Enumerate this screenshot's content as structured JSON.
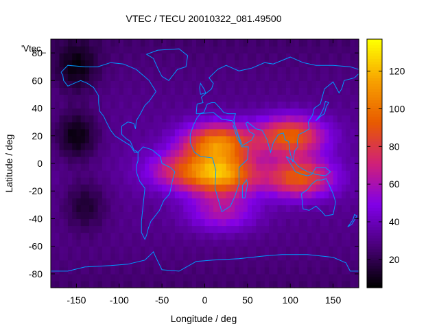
{
  "chart_data": {
    "type": "heatmap",
    "title": "VTEC / TECU 20010322_081.49500",
    "key_label": "'Vtec_",
    "xlabel": "Longitude / deg",
    "ylabel": "Latitude / deg",
    "xlim": [
      -180,
      180
    ],
    "ylim": [
      -90,
      90
    ],
    "x_ticks": [
      -150,
      -100,
      -50,
      0,
      50,
      100,
      150
    ],
    "y_ticks": [
      -80,
      -60,
      -40,
      -20,
      0,
      20,
      40,
      60,
      80
    ],
    "colorbar": {
      "range": [
        5,
        137
      ],
      "ticks": [
        20,
        40,
        60,
        80,
        100,
        120
      ]
    },
    "colormap": [
      "#000000",
      "#4a007a",
      "#8000e8",
      "#d02078",
      "#e85a00",
      "#f7a000",
      "#ffff00"
    ],
    "coastline_color": "#0099ff",
    "grid": false,
    "peaks": [
      {
        "lon": 15,
        "lat": 15,
        "vtec": 105
      },
      {
        "lon": 100,
        "lat": 20,
        "vtec": 95
      },
      {
        "lon": 20,
        "lat": -8,
        "vtec": 110
      },
      {
        "lon": 110,
        "lat": -10,
        "vtec": 92
      },
      {
        "lon": -30,
        "lat": -5,
        "vtec": 70
      },
      {
        "lon": 20,
        "lat": -35,
        "vtec": 62
      }
    ],
    "minima": [
      {
        "lon": -150,
        "lat": 20,
        "vtec": 8
      },
      {
        "lon": -140,
        "lat": -30,
        "vtec": 15
      },
      {
        "lon": -150,
        "lat": 70,
        "vtec": 12
      }
    ]
  }
}
